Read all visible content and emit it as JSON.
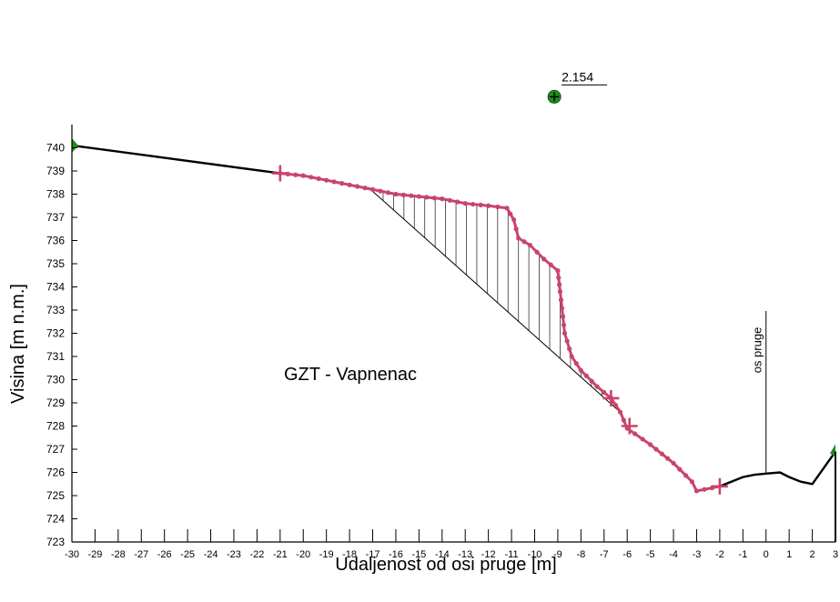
{
  "chart_data": {
    "type": "line",
    "title": "",
    "xlabel": "Udaljenost od osi pruge [m]",
    "ylabel": "Visina [m n.m.]",
    "xlim": [
      -30,
      3
    ],
    "ylim": [
      723,
      741
    ],
    "x_ticks": [
      -30,
      -29,
      -28,
      -27,
      -26,
      -25,
      -24,
      -23,
      -22,
      -21,
      -20,
      -19,
      -18,
      -17,
      -16,
      -15,
      -14,
      -13,
      -12,
      -11,
      -10,
      -9,
      -8,
      -7,
      -6,
      -5,
      -4,
      -3,
      -2,
      -1,
      0,
      1,
      2,
      3
    ],
    "y_ticks": [
      723,
      724,
      725,
      726,
      727,
      728,
      729,
      730,
      731,
      732,
      733,
      734,
      735,
      736,
      737,
      738,
      739,
      740
    ],
    "grid": false,
    "annotations": {
      "zone_label": "GZT - Vapnenac",
      "axis_label": "os pruge",
      "axis_x": 0,
      "point_label": "2.154",
      "point_x": -9.15,
      "point_y": 742.2
    },
    "series": [
      {
        "role": "terrain",
        "color": "#000000",
        "points": [
          [
            -30,
            740.1
          ],
          [
            -21,
            738.9
          ],
          [
            -20,
            738.8
          ],
          [
            -19,
            738.6
          ],
          [
            -18,
            738.4
          ],
          [
            -17,
            738.2
          ],
          [
            -16,
            738.0
          ],
          [
            -15,
            737.9
          ],
          [
            -14,
            737.8
          ],
          [
            -13,
            737.6
          ],
          [
            -12,
            737.5
          ],
          [
            -11.2,
            737.4
          ],
          [
            -10.9,
            736.9
          ],
          [
            -10.7,
            736.1
          ],
          [
            -10.2,
            735.8
          ],
          [
            -9.6,
            735.2
          ],
          [
            -9.0,
            734.7
          ],
          [
            -8.9,
            733.8
          ],
          [
            -8.7,
            732.0
          ],
          [
            -8.4,
            731.0
          ],
          [
            -8.0,
            730.4
          ],
          [
            -7.3,
            729.7
          ],
          [
            -6.7,
            729.2
          ],
          [
            -6.3,
            728.6
          ],
          [
            -6,
            727.9
          ],
          [
            -5,
            727.2
          ],
          [
            -4,
            726.4
          ],
          [
            -3.2,
            725.6
          ],
          [
            -3,
            725.2
          ],
          [
            -2,
            725.4
          ],
          [
            -1.5,
            725.6
          ],
          [
            -1,
            725.8
          ],
          [
            -0.5,
            725.9
          ],
          [
            0,
            725.95
          ],
          [
            0.6,
            726.0
          ],
          [
            1,
            725.8
          ],
          [
            1.5,
            725.6
          ],
          [
            2,
            725.5
          ],
          [
            2.5,
            726.2
          ],
          [
            3,
            726.9
          ]
        ]
      },
      {
        "role": "profile",
        "color": "#c8456a",
        "points": [
          [
            -21,
            738.9
          ],
          [
            -20,
            738.8
          ],
          [
            -19,
            738.6
          ],
          [
            -18,
            738.4
          ],
          [
            -17,
            738.2
          ],
          [
            -16,
            738.0
          ],
          [
            -15,
            737.9
          ],
          [
            -14,
            737.8
          ],
          [
            -13,
            737.6
          ],
          [
            -12,
            737.5
          ],
          [
            -11.2,
            737.4
          ],
          [
            -10.9,
            736.9
          ],
          [
            -10.7,
            736.1
          ],
          [
            -10.2,
            735.8
          ],
          [
            -9.6,
            735.2
          ],
          [
            -9.0,
            734.7
          ],
          [
            -8.9,
            733.8
          ],
          [
            -8.7,
            732.0
          ],
          [
            -8.4,
            731.0
          ],
          [
            -8.0,
            730.4
          ],
          [
            -7.3,
            729.7
          ],
          [
            -6.7,
            729.2
          ],
          [
            -6.3,
            728.6
          ],
          [
            -6,
            727.9
          ],
          [
            -5,
            727.2
          ],
          [
            -4,
            726.4
          ],
          [
            -3.2,
            725.6
          ],
          [
            -3,
            725.2
          ],
          [
            -2,
            725.4
          ]
        ]
      },
      {
        "role": "slip-base",
        "color": "#000000",
        "points": [
          [
            -17.2,
            738.3
          ],
          [
            -6.3,
            728.6
          ]
        ]
      }
    ],
    "crosses": [
      [
        -21,
        738.9
      ],
      [
        -6.7,
        729.2
      ],
      [
        -5.9,
        728.0
      ],
      [
        -2,
        725.4
      ]
    ],
    "end_markers": [
      [
        -30,
        740.1
      ],
      [
        3,
        726.9
      ]
    ],
    "colors": {
      "terrain": "#000000",
      "profile": "#c8456a",
      "marker": "#1e8c1e",
      "hatch": "#333333"
    }
  }
}
